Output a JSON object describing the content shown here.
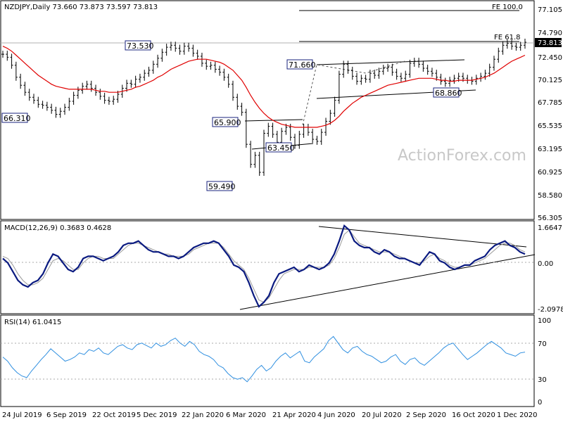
{
  "header": {
    "symbol_line": "NZDJPY,Daily  73.660 73.873 73.597 73.813"
  },
  "watermark": "ActionForex.com",
  "colors": {
    "price_bars": "#000000",
    "moving_average": "#e00000",
    "macd_line": "#0a1a80",
    "signal_line": "#9a9a9a",
    "rsi_line": "#2f8fe0",
    "label_box_border": "#1a237e",
    "last_price_box": "#000000"
  },
  "chart_data": [
    {
      "type": "line",
      "name_label": "price",
      "x_ticks": [
        "24 Jul 2019",
        "6 Sep 2019",
        "22 Oct 2019",
        "5 Dec 2019",
        "22 Jan 2020",
        "6 Mar 2020",
        "21 Apr 2020",
        "4 Jun 2020",
        "20 Jul 2020",
        "2 Sep 2020",
        "16 Oct 2020",
        "1 Dec 2020"
      ],
      "y_ticks": [
        "77.105",
        "74.790",
        "72.450",
        "70.125",
        "67.785",
        "65.535",
        "63.195",
        "60.925",
        "58.580",
        "56.305"
      ],
      "ylim": [
        56.305,
        77.105
      ],
      "last_price": "73.813",
      "annotations": [
        "73.530",
        "71.660",
        "66.310",
        "65.900",
        "63.450",
        "59.490",
        "68.860",
        "FE 61.8",
        "FE 100.0"
      ],
      "closes": [
        72.6,
        72.3,
        71.5,
        70.3,
        69.5,
        68.8,
        68.3,
        68.0,
        67.6,
        67.5,
        67.3,
        67.0,
        66.6,
        66.9,
        67.3,
        67.9,
        68.5,
        69.0,
        69.4,
        69.6,
        69.2,
        68.8,
        68.4,
        68.0,
        67.9,
        68.1,
        68.6,
        69.2,
        69.7,
        69.6,
        70.1,
        70.3,
        70.7,
        71.0,
        71.6,
        72.2,
        72.8,
        73.3,
        73.5,
        73.2,
        72.9,
        73.4,
        73.2,
        72.7,
        72.4,
        71.7,
        71.4,
        71.5,
        71.1,
        70.8,
        70.3,
        69.6,
        68.3,
        67.4,
        66.8,
        63.6,
        61.6,
        62.5,
        60.8,
        64.7,
        65.4,
        64.6,
        63.8,
        64.9,
        65.3,
        64.3,
        63.5,
        64.6,
        65.3,
        64.8,
        64.1,
        63.9,
        64.8,
        65.9,
        66.7,
        68.0,
        70.6,
        71.6,
        71.0,
        70.4,
        69.9,
        70.2,
        70.1,
        70.7,
        70.5,
        70.9,
        71.2,
        71.3,
        70.8,
        70.4,
        70.2,
        70.6,
        71.7,
        71.9,
        71.6,
        71.2,
        70.9,
        70.7,
        70.3,
        69.9,
        69.7,
        70.0,
        70.2,
        70.4,
        70.2,
        70.0,
        69.9,
        70.2,
        70.4,
        70.7,
        71.3,
        72.1,
        72.9,
        73.5,
        73.7,
        73.4,
        73.3,
        73.5,
        73.8
      ],
      "ma": [
        73.4,
        73.2,
        72.9,
        72.5,
        72.1,
        71.7,
        71.3,
        70.9,
        70.5,
        70.2,
        69.9,
        69.6,
        69.4,
        69.3,
        69.2,
        69.1,
        69.1,
        69.1,
        69.1,
        69.1,
        69.1,
        69.0,
        68.9,
        68.9,
        68.8,
        68.8,
        68.8,
        68.9,
        69.0,
        69.1,
        69.3,
        69.4,
        69.6,
        69.8,
        70.0,
        70.3,
        70.5,
        70.8,
        71.1,
        71.3,
        71.5,
        71.7,
        71.9,
        72.0,
        72.1,
        72.1,
        72.1,
        72.0,
        71.9,
        71.8,
        71.6,
        71.3,
        71.0,
        70.5,
        70.0,
        69.3,
        68.5,
        67.8,
        67.2,
        66.7,
        66.3,
        66.0,
        65.8,
        65.6,
        65.5,
        65.4,
        65.3,
        65.3,
        65.3,
        65.3,
        65.3,
        65.3,
        65.4,
        65.5,
        65.7,
        66.0,
        66.4,
        66.9,
        67.3,
        67.7,
        68.0,
        68.3,
        68.5,
        68.7,
        68.9,
        69.1,
        69.3,
        69.5,
        69.6,
        69.7,
        69.8,
        69.9,
        70.0,
        70.1,
        70.2,
        70.2,
        70.2,
        70.2,
        70.1,
        70.0,
        70.0,
        69.9,
        69.9,
        70.0,
        70.0,
        70.0,
        70.0,
        70.1,
        70.2,
        70.3,
        70.5,
        70.7,
        71.0,
        71.3,
        71.6,
        71.9,
        72.1,
        72.3,
        72.5
      ]
    },
    {
      "type": "line",
      "title": "MACD(12,26,9) 0.3683 0.4628",
      "y_ticks": [
        "1.6647",
        "0.00",
        "-2.0978"
      ],
      "ylim": [
        -2.0978,
        1.6647
      ],
      "macd": [
        0.2,
        0.0,
        -0.4,
        -0.8,
        -1.0,
        -1.1,
        -0.9,
        -0.8,
        -0.5,
        0.0,
        0.4,
        0.3,
        0.0,
        -0.3,
        -0.4,
        -0.2,
        0.2,
        0.3,
        0.3,
        0.2,
        0.1,
        0.2,
        0.3,
        0.5,
        0.8,
        0.9,
        0.9,
        1.0,
        0.8,
        0.6,
        0.5,
        0.5,
        0.4,
        0.3,
        0.3,
        0.2,
        0.3,
        0.5,
        0.7,
        0.8,
        0.9,
        0.9,
        1.0,
        0.9,
        0.6,
        0.3,
        -0.1,
        -0.2,
        -0.4,
        -0.9,
        -1.5,
        -2.0,
        -1.8,
        -1.5,
        -0.9,
        -0.5,
        -0.4,
        -0.3,
        -0.2,
        -0.4,
        -0.3,
        -0.1,
        -0.2,
        -0.3,
        -0.2,
        0.0,
        0.4,
        1.0,
        1.7,
        1.5,
        1.0,
        0.8,
        0.7,
        0.7,
        0.5,
        0.4,
        0.6,
        0.5,
        0.3,
        0.2,
        0.2,
        0.1,
        0.0,
        -0.1,
        0.2,
        0.5,
        0.4,
        0.1,
        0.0,
        -0.2,
        -0.3,
        -0.2,
        -0.1,
        -0.1,
        0.1,
        0.2,
        0.3,
        0.6,
        0.8,
        0.9,
        1.0,
        0.8,
        0.7,
        0.5,
        0.4
      ],
      "signal": [
        0.3,
        0.2,
        -0.1,
        -0.5,
        -0.8,
        -1.0,
        -1.0,
        -0.9,
        -0.7,
        -0.3,
        0.1,
        0.2,
        0.1,
        -0.1,
        -0.3,
        -0.3,
        0.0,
        0.2,
        0.3,
        0.3,
        0.2,
        0.2,
        0.2,
        0.4,
        0.6,
        0.8,
        0.9,
        0.9,
        0.8,
        0.7,
        0.6,
        0.5,
        0.4,
        0.4,
        0.3,
        0.3,
        0.3,
        0.4,
        0.6,
        0.7,
        0.8,
        0.9,
        0.9,
        0.9,
        0.7,
        0.4,
        0.1,
        -0.1,
        -0.3,
        -0.7,
        -1.2,
        -1.7,
        -1.8,
        -1.6,
        -1.2,
        -0.8,
        -0.5,
        -0.4,
        -0.3,
        -0.3,
        -0.3,
        -0.2,
        -0.2,
        -0.2,
        -0.2,
        -0.1,
        0.2,
        0.7,
        1.3,
        1.5,
        1.2,
        0.9,
        0.8,
        0.7,
        0.6,
        0.5,
        0.5,
        0.5,
        0.4,
        0.3,
        0.2,
        0.1,
        0.0,
        0.0,
        0.1,
        0.3,
        0.4,
        0.2,
        0.1,
        -0.1,
        -0.2,
        -0.2,
        -0.1,
        -0.1,
        0.0,
        0.1,
        0.2,
        0.4,
        0.6,
        0.8,
        0.9,
        0.9,
        0.8,
        0.6,
        0.5
      ]
    },
    {
      "type": "line",
      "title": "RSI(14) 61.0415",
      "y_ticks": [
        "100",
        "70",
        "30",
        "0"
      ],
      "ylim": [
        0,
        100
      ],
      "rsi": [
        55,
        50,
        42,
        36,
        32,
        30,
        38,
        45,
        52,
        58,
        65,
        60,
        55,
        50,
        52,
        55,
        60,
        58,
        64,
        62,
        66,
        60,
        58,
        63,
        68,
        70,
        66,
        64,
        70,
        72,
        69,
        66,
        72,
        68,
        70,
        75,
        78,
        72,
        68,
        74,
        70,
        62,
        58,
        56,
        52,
        45,
        42,
        35,
        30,
        28,
        30,
        25,
        32,
        40,
        45,
        38,
        42,
        50,
        56,
        60,
        54,
        58,
        62,
        50,
        48,
        55,
        60,
        65,
        75,
        80,
        72,
        64,
        60,
        66,
        68,
        62,
        58,
        56,
        52,
        48,
        50,
        55,
        58,
        50,
        46,
        52,
        54,
        48,
        45,
        50,
        55,
        60,
        66,
        70,
        72,
        65,
        58,
        52,
        56,
        60,
        65,
        70,
        74,
        70,
        66,
        60,
        58,
        56,
        60,
        61
      ]
    }
  ]
}
